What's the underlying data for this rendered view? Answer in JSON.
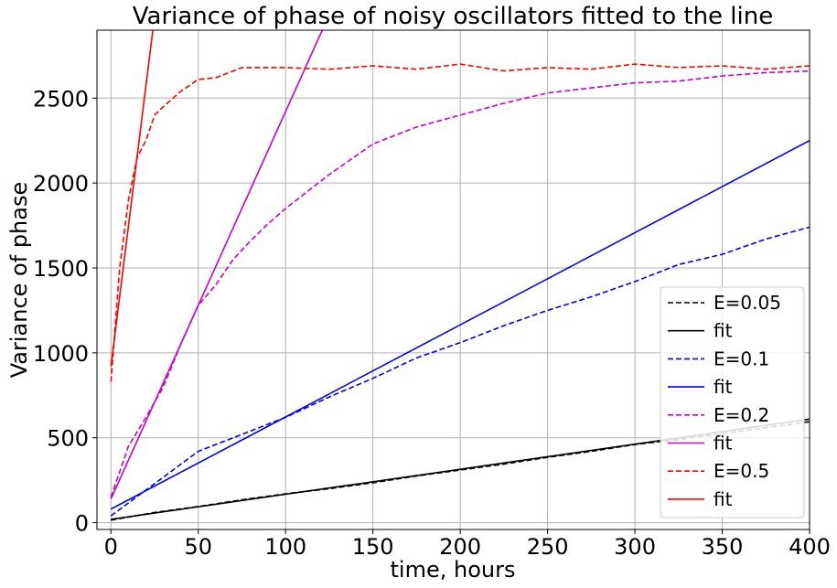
{
  "chart_data": {
    "type": "line",
    "title": "Variance of phase of noisy oscillators fitted to the line",
    "xlabel": "time, hours",
    "ylabel": "Variance of phase",
    "xlim": [
      -8,
      400
    ],
    "ylim": [
      -40,
      2900
    ],
    "xticks": [
      0,
      50,
      100,
      150,
      200,
      250,
      300,
      350,
      400
    ],
    "yticks": [
      0,
      500,
      1000,
      1500,
      2000,
      2500
    ],
    "grid": true,
    "legend_position": "lower-right",
    "series": [
      {
        "name": "E=0.05",
        "style": "dashed",
        "color": "#000000",
        "x": [
          0,
          25,
          50,
          75,
          100,
          125,
          150,
          175,
          200,
          225,
          250,
          275,
          300,
          325,
          350,
          375,
          400
        ],
        "y": [
          15,
          60,
          95,
          135,
          170,
          200,
          235,
          275,
          310,
          345,
          385,
          420,
          460,
          490,
          525,
          560,
          595
        ]
      },
      {
        "name": "fit",
        "style": "solid",
        "color": "#000000",
        "x": [
          0,
          400
        ],
        "y": [
          20,
          610
        ]
      },
      {
        "name": "E=0.1",
        "style": "dashed",
        "color": "#0000ff",
        "x": [
          0,
          25,
          50,
          75,
          100,
          125,
          150,
          175,
          200,
          225,
          250,
          275,
          300,
          325,
          350,
          375,
          400
        ],
        "y": [
          40,
          230,
          420,
          520,
          620,
          740,
          850,
          970,
          1060,
          1160,
          1250,
          1330,
          1420,
          1520,
          1580,
          1670,
          1740
        ]
      },
      {
        "name": "fit",
        "style": "solid",
        "color": "#0000ff",
        "x": [
          0,
          400
        ],
        "y": [
          80,
          2250
        ]
      },
      {
        "name": "E=0.2",
        "style": "dashed",
        "color": "#cc00cc",
        "x": [
          0,
          10,
          20,
          30,
          40,
          50,
          60,
          70,
          80,
          90,
          100,
          125,
          150,
          175,
          200,
          225,
          250,
          275,
          300,
          325,
          350,
          375,
          400
        ],
        "y": [
          150,
          450,
          620,
          800,
          1050,
          1280,
          1400,
          1550,
          1660,
          1760,
          1850,
          2050,
          2230,
          2330,
          2400,
          2470,
          2530,
          2560,
          2590,
          2600,
          2630,
          2650,
          2660
        ]
      },
      {
        "name": "fit",
        "style": "solid",
        "color": "#cc00cc",
        "x": [
          0,
          121
        ],
        "y": [
          140,
          2900
        ]
      },
      {
        "name": "E=0.5",
        "style": "dashed",
        "color": "#ff0000",
        "x": [
          0,
          5,
          10,
          15,
          20,
          25,
          30,
          40,
          50,
          60,
          75,
          100,
          125,
          150,
          175,
          200,
          225,
          250,
          275,
          300,
          325,
          350,
          375,
          400
        ],
        "y": [
          830,
          1500,
          1900,
          2150,
          2250,
          2400,
          2450,
          2540,
          2610,
          2620,
          2680,
          2680,
          2670,
          2690,
          2670,
          2700,
          2660,
          2680,
          2670,
          2700,
          2680,
          2690,
          2670,
          2690
        ]
      },
      {
        "name": "fit",
        "style": "solid",
        "color": "#ff0000",
        "x": [
          0,
          24
        ],
        "y": [
          920,
          2900
        ]
      }
    ]
  }
}
